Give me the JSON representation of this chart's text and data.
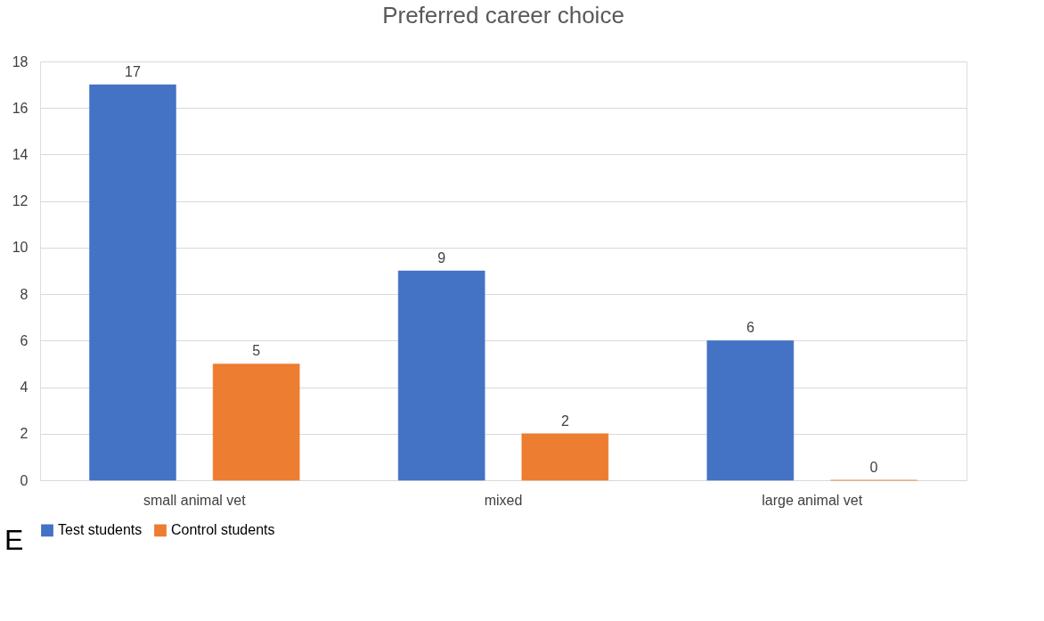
{
  "chart_data": {
    "type": "bar",
    "title": "Preferred career choice",
    "categories": [
      "small animal vet",
      "mixed",
      "large animal vet"
    ],
    "series": [
      {
        "name": "Test students",
        "color": "#4472c4",
        "values": [
          17,
          9,
          6
        ]
      },
      {
        "name": "Control students",
        "color": "#ed7d31",
        "values": [
          5,
          2,
          0
        ]
      }
    ],
    "ylim": [
      0,
      18
    ],
    "yticks": [
      0,
      2,
      4,
      6,
      8,
      10,
      12,
      14,
      16,
      18
    ],
    "grid": "y",
    "legend": "bottom",
    "data_labels": true,
    "annotations": [
      "E"
    ]
  }
}
